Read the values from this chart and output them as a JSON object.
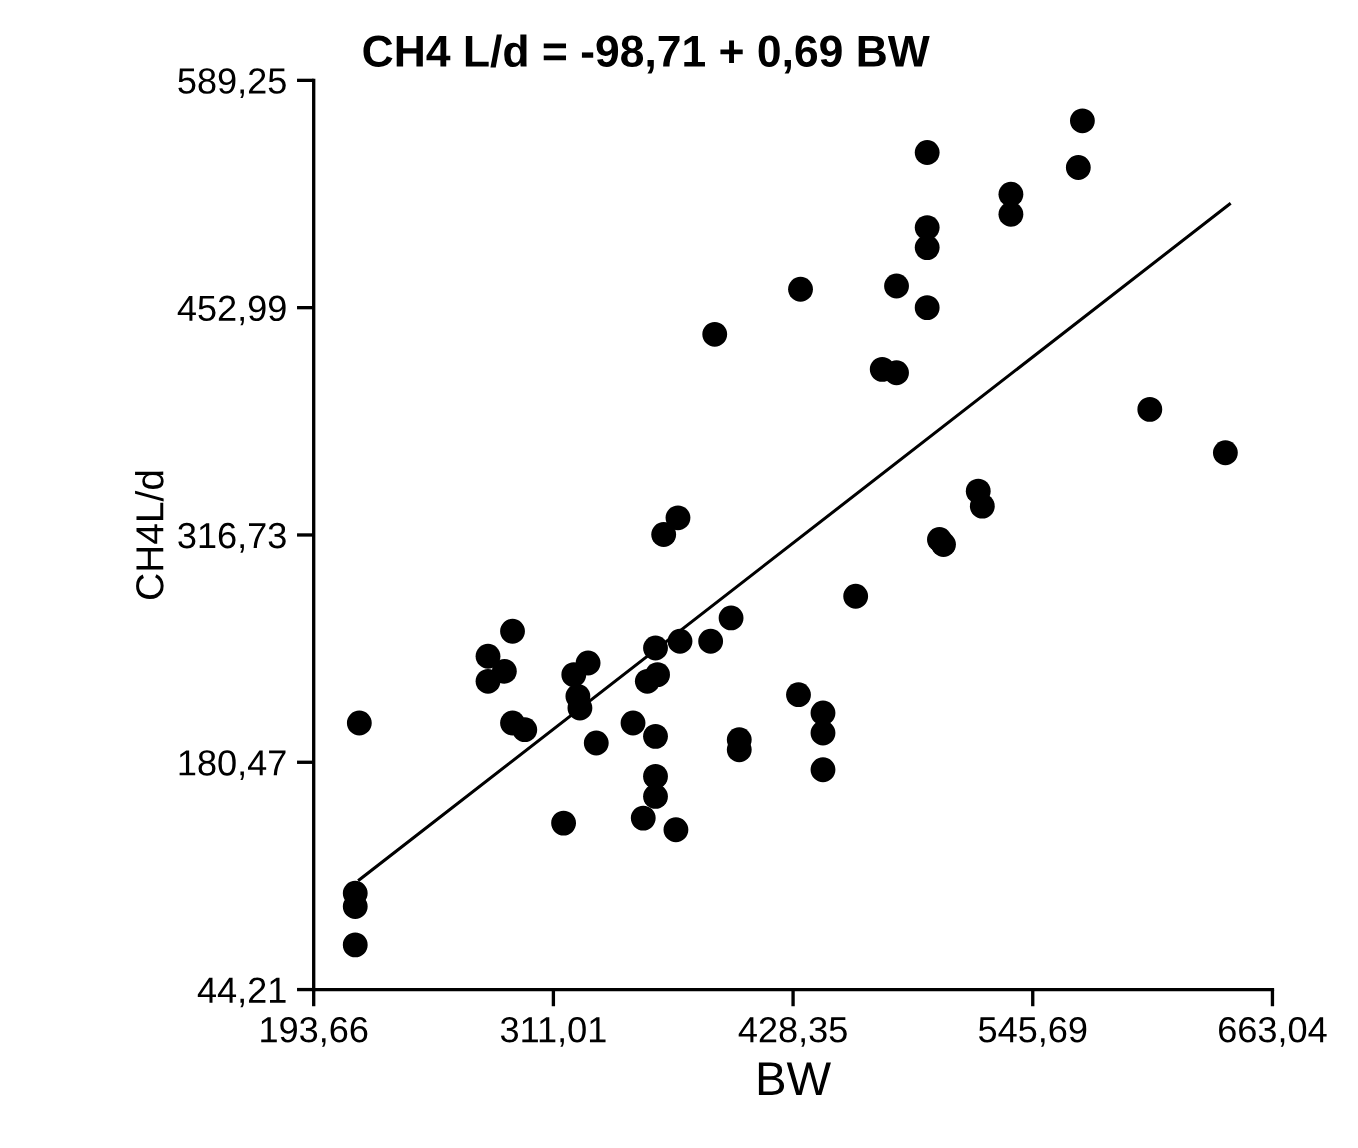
{
  "chart_data": {
    "type": "scatter",
    "title": "CH4 L/d = -98,71 + 0,69 BW",
    "xlabel": "BW",
    "ylabel": "CH4L/d",
    "xlim": [
      193.66,
      663.04
    ],
    "ylim": [
      44.21,
      589.25
    ],
    "xticks": [
      {
        "value": 193.66,
        "label": "193,66"
      },
      {
        "value": 311.01,
        "label": "311,01"
      },
      {
        "value": 428.35,
        "label": "428,35"
      },
      {
        "value": 545.69,
        "label": "545,69"
      },
      {
        "value": 663.04,
        "label": "663,04"
      }
    ],
    "yticks": [
      {
        "value": 44.21,
        "label": "44,21"
      },
      {
        "value": 180.47,
        "label": "180,47"
      },
      {
        "value": 316.73,
        "label": "316,73"
      },
      {
        "value": 452.99,
        "label": "452,99"
      },
      {
        "value": 589.25,
        "label": "589,25"
      }
    ],
    "grid": false,
    "series": [
      {
        "color": "#000000",
        "marker": "circle",
        "x": [
          216,
          214,
          214,
          214,
          279,
          291,
          279,
          287,
          291,
          297,
          316,
          321,
          328,
          323,
          324,
          332,
          350,
          361,
          357,
          362,
          361,
          361,
          361,
          355,
          371,
          373,
          388,
          398,
          402,
          402,
          431,
          459,
          443,
          443,
          443,
          390,
          365,
          372,
          432,
          570,
          568,
          494,
          535,
          535,
          494,
          494,
          479,
          494,
          472,
          479,
          603,
          640,
          519,
          521,
          500,
          502
        ],
        "values": [
          204,
          102,
          94,
          71,
          244,
          259,
          229,
          235,
          204,
          200,
          144,
          233,
          240,
          220,
          213,
          192,
          204,
          249,
          229,
          233,
          196,
          172,
          160,
          147,
          140,
          253,
          253,
          267,
          194,
          188,
          221,
          280,
          210,
          198,
          176,
          437,
          317,
          327,
          464,
          565,
          537,
          546,
          521,
          509,
          501,
          489,
          466,
          453,
          416,
          414,
          392,
          366,
          343,
          334,
          314,
          311
        ]
      },
      {
        "type": "line",
        "color": "#000000",
        "line_style": "solid",
        "x": [
          216,
          642
        ],
        "values": [
          110,
          515
        ]
      }
    ]
  }
}
